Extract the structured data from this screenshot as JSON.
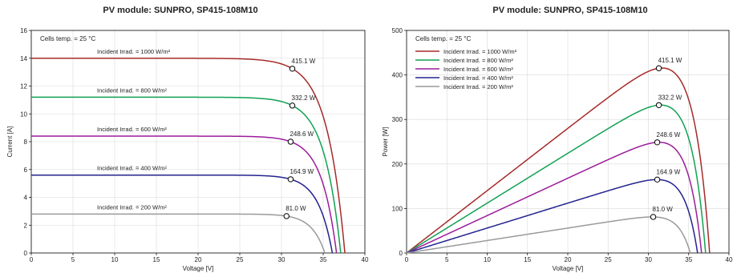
{
  "chart_data": [
    {
      "type": "line",
      "title": "PV module:  SUNPRO,  SP415-108M10",
      "xlabel": "Voltage [V]",
      "ylabel": "Current [A]",
      "xlim": [
        0,
        40
      ],
      "ylim": [
        0,
        16
      ],
      "xticks": [
        "0",
        "5",
        "10",
        "15",
        "20",
        "25",
        "30",
        "35",
        "40"
      ],
      "yticks": [
        "0",
        "2",
        "4",
        "6",
        "8",
        "10",
        "12",
        "14",
        "16"
      ],
      "grid": true,
      "annotation": "Cells temp. = 25 °C",
      "series": [
        {
          "name": "Incident Irrad. = 1000 W/m²",
          "color": "#a52a2a",
          "isc": 14.0,
          "voc": 37.6,
          "vmp": 31.3,
          "imp": 13.25,
          "mpp_label": "415.1 W"
        },
        {
          "name": "Incident Irrad. = 800 W/m²",
          "color": "#11a152",
          "isc": 11.2,
          "voc": 37.1,
          "vmp": 31.3,
          "imp": 10.6,
          "mpp_label": "332.2 W"
        },
        {
          "name": "Incident Irrad. = 600 W/m²",
          "color": "#9b1c9b",
          "isc": 8.4,
          "voc": 36.6,
          "vmp": 31.1,
          "imp": 8.0,
          "mpp_label": "248.6 W"
        },
        {
          "name": "Incident Irrad. = 400 W/m²",
          "color": "#23238f",
          "isc": 5.6,
          "voc": 36.1,
          "vmp": 31.1,
          "imp": 5.3,
          "mpp_label": "164.9 W"
        },
        {
          "name": "Incident Irrad. = 200 W/m²",
          "color": "#9a9a9a",
          "isc": 2.8,
          "voc": 35.2,
          "vmp": 30.6,
          "imp": 2.65,
          "mpp_label": "81.0 W"
        }
      ]
    },
    {
      "type": "line",
      "title": "PV module:  SUNPRO,  SP415-108M10",
      "xlabel": "Voltage [V]",
      "ylabel": "Power [W]",
      "xlim": [
        0,
        40
      ],
      "ylim": [
        0,
        500
      ],
      "xticks": [
        "0",
        "5",
        "10",
        "15",
        "20",
        "25",
        "30",
        "35",
        "40"
      ],
      "yticks": [
        "0",
        "100",
        "200",
        "300",
        "400",
        "500"
      ],
      "grid": true,
      "annotation": "Cells temp. = 25 °C",
      "legend": "top-left",
      "series": [
        {
          "name": "Incident Irrad. = 1000 W/m²",
          "color": "#a52a2a",
          "isc": 14.0,
          "voc": 37.6,
          "vmp": 31.3,
          "pmp": 415.1,
          "mpp_label": "415.1 W"
        },
        {
          "name": "Incident Irrad. = 800 W/m²",
          "color": "#11a152",
          "isc": 11.2,
          "voc": 37.1,
          "vmp": 31.3,
          "pmp": 332.2,
          "mpp_label": "332.2 W"
        },
        {
          "name": "Incident Irrad. = 600 W/m²",
          "color": "#9b1c9b",
          "isc": 8.4,
          "voc": 36.6,
          "vmp": 31.1,
          "pmp": 248.6,
          "mpp_label": "248.6 W"
        },
        {
          "name": "Incident Irrad. = 400 W/m²",
          "color": "#23238f",
          "isc": 5.6,
          "voc": 36.1,
          "vmp": 31.1,
          "pmp": 164.9,
          "mpp_label": "164.9 W"
        },
        {
          "name": "Incident Irrad. = 200 W/m²",
          "color": "#9a9a9a",
          "isc": 2.8,
          "voc": 35.2,
          "vmp": 30.6,
          "pmp": 81.0,
          "mpp_label": "81.0 W"
        }
      ]
    }
  ]
}
